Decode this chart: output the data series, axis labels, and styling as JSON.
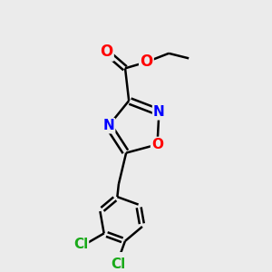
{
  "background_color": "#ebebeb",
  "bond_color": "#000000",
  "bond_width": 1.8,
  "atom_colors": {
    "O": "#ff0000",
    "N": "#0000ff",
    "Cl": "#1aaa1a",
    "C": "#000000"
  },
  "font_size_ring": 11,
  "font_size_cl": 11,
  "font_size_o": 12
}
